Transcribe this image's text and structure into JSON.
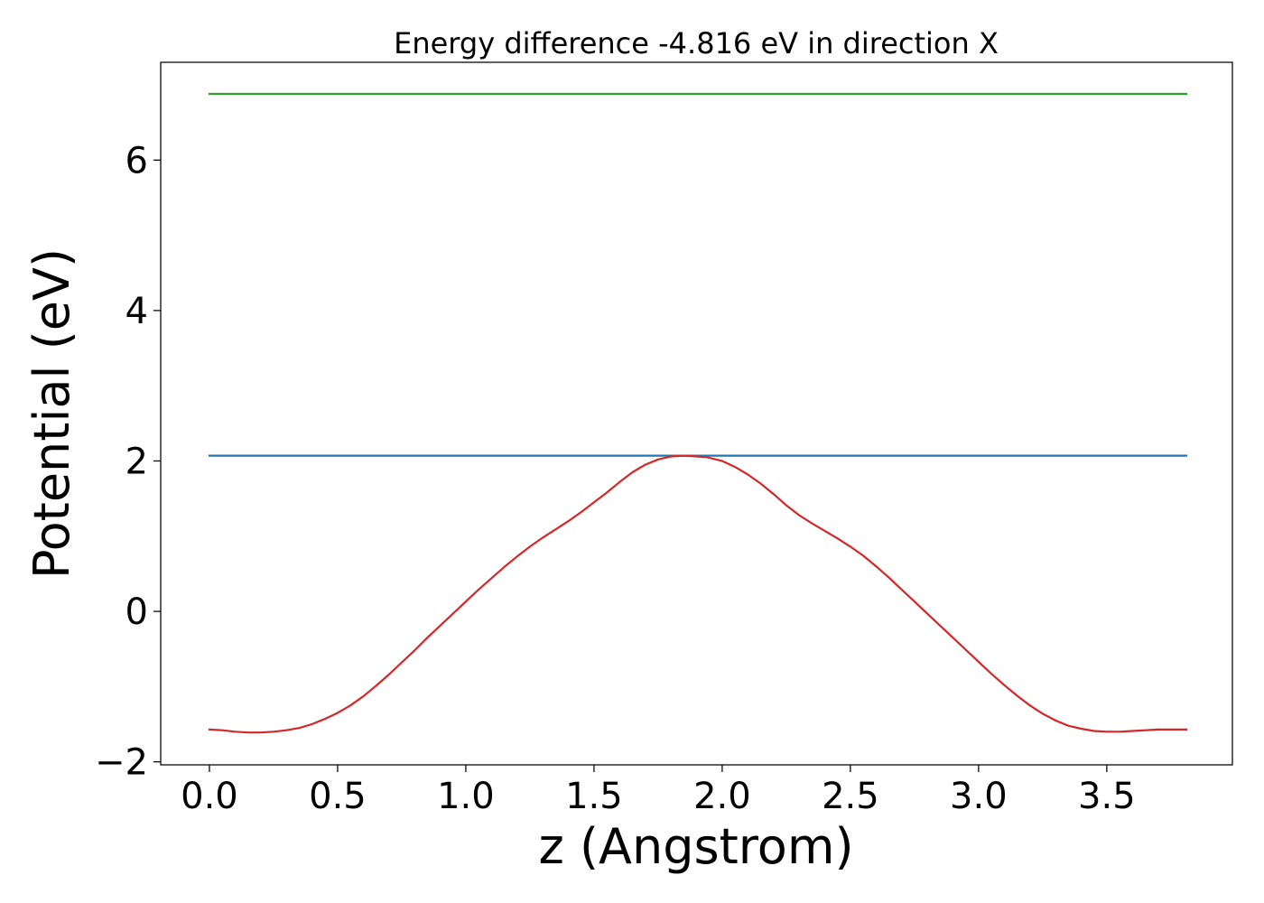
{
  "chart_data": {
    "type": "line",
    "title": "Energy difference -4.816 eV in direction X",
    "xlabel": "z (Angstrom)",
    "ylabel": "Potential (eV)",
    "xlim": [
      -0.19,
      3.99
    ],
    "ylim": [
      -2.04,
      7.3
    ],
    "xticks": [
      0.0,
      0.5,
      1.0,
      1.5,
      2.0,
      2.5,
      3.0,
      3.5
    ],
    "xtick_labels": [
      "0.0",
      "0.5",
      "1.0",
      "1.5",
      "2.0",
      "2.5",
      "3.0",
      "3.5"
    ],
    "yticks": [
      -2,
      0,
      2,
      4,
      6
    ],
    "ytick_labels": [
      "−2",
      "0",
      "2",
      "4",
      "6"
    ],
    "grid": false,
    "series": [
      {
        "color": "#2ca02c",
        "x": [
          0.0,
          3.81
        ],
        "y": [
          6.88,
          6.88
        ]
      },
      {
        "color": "#1f77b4",
        "x": [
          0.0,
          3.81
        ],
        "y": [
          2.07,
          2.07
        ]
      },
      {
        "color": "#d62728",
        "x": [
          0.0,
          0.05,
          0.1,
          0.15,
          0.2,
          0.25,
          0.3,
          0.35,
          0.4,
          0.45,
          0.5,
          0.55,
          0.6,
          0.65,
          0.7,
          0.75,
          0.8,
          0.85,
          0.9,
          0.95,
          1.0,
          1.05,
          1.1,
          1.15,
          1.2,
          1.25,
          1.3,
          1.35,
          1.4,
          1.45,
          1.5,
          1.55,
          1.6,
          1.65,
          1.7,
          1.75,
          1.8,
          1.85,
          1.9,
          1.94,
          2.0,
          2.05,
          2.1,
          2.15,
          2.2,
          2.25,
          2.3,
          2.35,
          2.4,
          2.45,
          2.5,
          2.55,
          2.6,
          2.65,
          2.7,
          2.75,
          2.8,
          2.85,
          2.9,
          2.95,
          3.0,
          3.05,
          3.1,
          3.15,
          3.2,
          3.25,
          3.3,
          3.35,
          3.4,
          3.45,
          3.5,
          3.55,
          3.6,
          3.65,
          3.7,
          3.75,
          3.81
        ],
        "y": [
          -1.57,
          -1.58,
          -1.6,
          -1.61,
          -1.61,
          -1.6,
          -1.58,
          -1.55,
          -1.5,
          -1.43,
          -1.35,
          -1.25,
          -1.13,
          -0.99,
          -0.84,
          -0.68,
          -0.52,
          -0.35,
          -0.19,
          -0.03,
          0.13,
          0.29,
          0.44,
          0.59,
          0.73,
          0.86,
          0.98,
          1.09,
          1.2,
          1.32,
          1.45,
          1.58,
          1.72,
          1.85,
          1.95,
          2.02,
          2.06,
          2.07,
          2.06,
          2.05,
          2.0,
          1.92,
          1.82,
          1.7,
          1.56,
          1.41,
          1.28,
          1.17,
          1.07,
          0.97,
          0.86,
          0.74,
          0.6,
          0.45,
          0.29,
          0.13,
          -0.03,
          -0.19,
          -0.35,
          -0.51,
          -0.67,
          -0.83,
          -0.98,
          -1.12,
          -1.25,
          -1.36,
          -1.45,
          -1.52,
          -1.56,
          -1.59,
          -1.6,
          -1.6,
          -1.59,
          -1.58,
          -1.57,
          -1.57,
          -1.57
        ]
      }
    ]
  }
}
